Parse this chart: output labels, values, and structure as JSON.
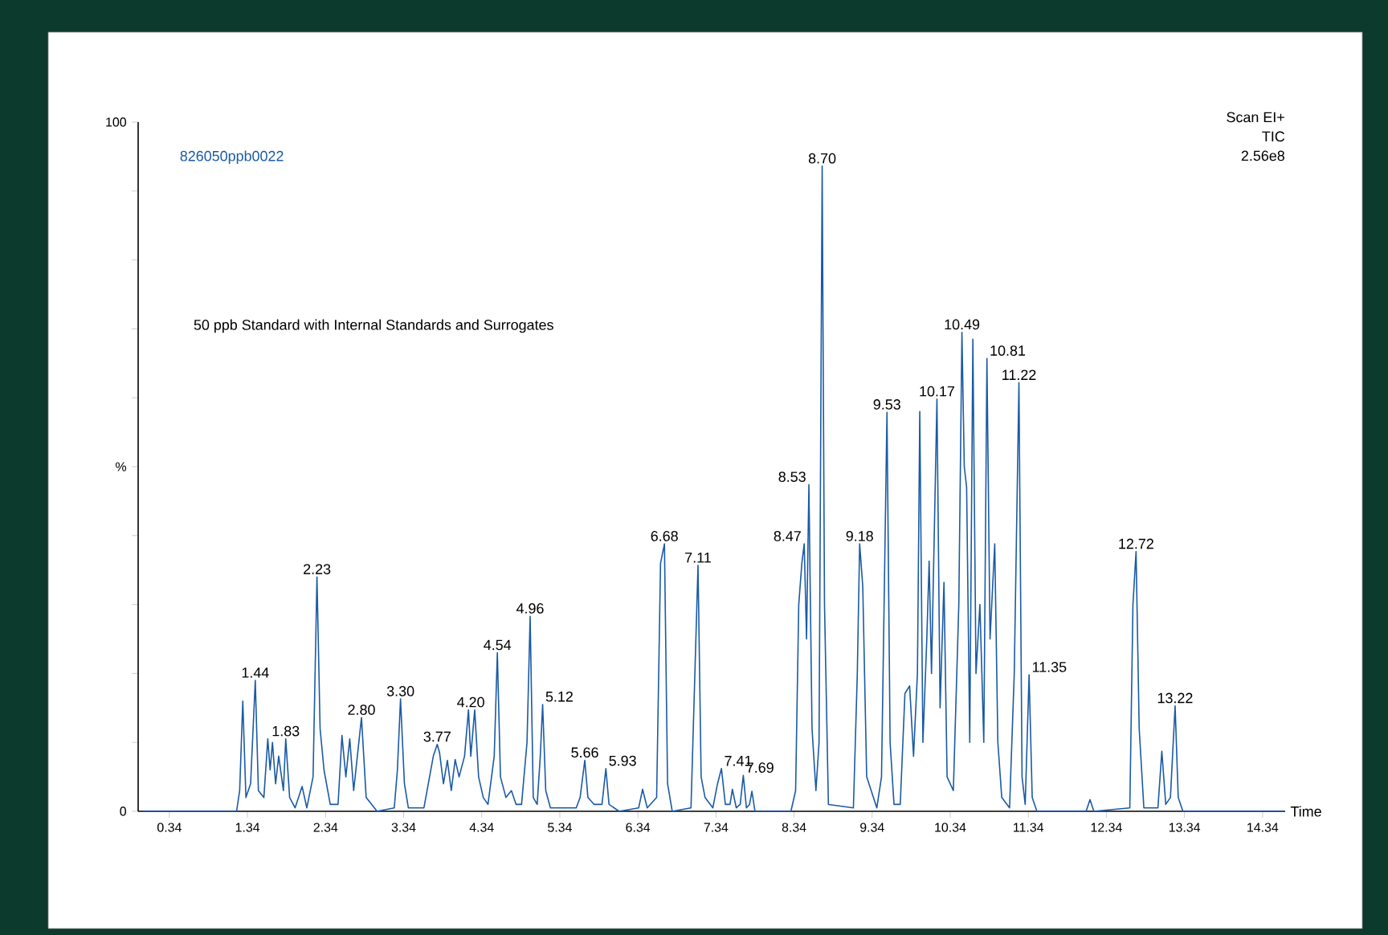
{
  "chart_data": {
    "type": "line",
    "title": "50 ppb Standard with Internal Standards and Surrogates",
    "subtitle": "826050ppb0022",
    "xlabel": "Time",
    "color": "#1a5aa6",
    "xlim": [
      -0.06,
      14.63
    ],
    "ylim": [
      0,
      100
    ],
    "xticks": [
      0.34,
      1.34,
      2.34,
      3.34,
      4.34,
      5.34,
      6.34,
      7.34,
      8.34,
      9.34,
      10.34,
      11.34,
      12.34,
      13.34,
      14.34
    ],
    "yticks": [
      0,
      {
        "value": 10,
        "label": null
      },
      {
        "value": 20,
        "label": null
      },
      {
        "value": 30,
        "label": null
      },
      {
        "value": 40,
        "label": null
      },
      {
        "value": 50,
        "label": "%"
      },
      {
        "value": 60,
        "label": null
      },
      {
        "value": 70,
        "label": null
      },
      {
        "value": 80,
        "label": null
      },
      {
        "value": 90,
        "label": null
      },
      100
    ],
    "x": [
      0,
      1.2,
      1.24,
      1.28,
      1.32,
      1.38,
      1.44,
      1.48,
      1.55,
      1.6,
      1.63,
      1.66,
      1.7,
      1.74,
      1.8,
      1.83,
      1.88,
      1.95,
      2.04,
      2.1,
      2.18,
      2.23,
      2.27,
      2.32,
      2.4,
      2.5,
      2.55,
      2.6,
      2.65,
      2.7,
      2.8,
      2.86,
      3.0,
      3.22,
      3.26,
      3.3,
      3.35,
      3.4,
      3.6,
      3.72,
      3.77,
      3.8,
      3.85,
      3.9,
      3.95,
      4.0,
      4.05,
      4.12,
      4.17,
      4.2,
      4.25,
      4.3,
      4.36,
      4.42,
      4.5,
      4.54,
      4.58,
      4.65,
      4.72,
      4.78,
      4.85,
      4.92,
      4.96,
      5.0,
      5.05,
      5.09,
      5.12,
      5.16,
      5.22,
      5.55,
      5.6,
      5.66,
      5.7,
      5.78,
      5.88,
      5.93,
      5.97,
      6.1,
      6.35,
      6.4,
      6.46,
      6.58,
      6.63,
      6.68,
      6.72,
      6.78,
      7.02,
      7.11,
      7.15,
      7.2,
      7.3,
      7.36,
      7.41,
      7.46,
      7.52,
      7.55,
      7.6,
      7.65,
      7.69,
      7.73,
      7.77,
      7.8,
      7.84,
      8.3,
      8.36,
      8.4,
      8.44,
      8.47,
      8.5,
      8.53,
      8.57,
      8.62,
      8.66,
      8.7,
      8.73,
      8.78,
      9.1,
      9.15,
      9.18,
      9.22,
      9.27,
      9.4,
      9.46,
      9.53,
      9.57,
      9.62,
      9.7,
      9.76,
      9.82,
      9.87,
      9.92,
      9.95,
      9.99,
      10.04,
      10.07,
      10.1,
      10.17,
      10.21,
      10.26,
      10.3,
      10.38,
      10.45,
      10.49,
      10.52,
      10.55,
      10.59,
      10.63,
      10.67,
      10.72,
      10.77,
      10.81,
      10.85,
      10.91,
      10.95,
      11.0,
      11.1,
      11.16,
      11.22,
      11.26,
      11.3,
      11.35,
      11.39,
      11.45,
      12.08,
      12.13,
      12.18,
      12.64,
      12.68,
      12.72,
      12.76,
      12.82,
      13.0,
      13.05,
      13.1,
      13.16,
      13.22,
      13.26,
      13.32,
      14.63
    ],
    "values": [
      0,
      0,
      3,
      16,
      2,
      4,
      19,
      3,
      2,
      10.5,
      6,
      10,
      4,
      8,
      3,
      10.5,
      2,
      0.5,
      3.6,
      0.5,
      5,
      34,
      12,
      6,
      1,
      1,
      11,
      5,
      10.5,
      3,
      13.6,
      2,
      0,
      0.5,
      6,
      16.3,
      4,
      0.5,
      0.5,
      8,
      9.7,
      8.5,
      4,
      7.4,
      3,
      7.5,
      5,
      8,
      14.7,
      8,
      14.7,
      5,
      2,
      1,
      8,
      23,
      5,
      2,
      3,
      1,
      1,
      10,
      28.3,
      2,
      1,
      8,
      15.5,
      3,
      0.5,
      0.5,
      2,
      7.4,
      2,
      1,
      1,
      6.2,
      1,
      0,
      0.5,
      3.2,
      0.5,
      2,
      36,
      38.8,
      4,
      0,
      0.5,
      35.7,
      5,
      2,
      0.5,
      4,
      6.2,
      1,
      1,
      3.2,
      0.5,
      1,
      5.2,
      0.5,
      1,
      2.9,
      0,
      0,
      3,
      30,
      36,
      38.8,
      25,
      47.4,
      12,
      3,
      10,
      93.6,
      30,
      1,
      0.5,
      20,
      38.8,
      32.6,
      5,
      0.5,
      5,
      57.9,
      10,
      1,
      1,
      17.1,
      18.2,
      8,
      20,
      58,
      10,
      25,
      36.3,
      20,
      59.8,
      15,
      33.2,
      5,
      3,
      30,
      69.5,
      50,
      47,
      10,
      68.5,
      20,
      30,
      10,
      65.7,
      25,
      38.8,
      10,
      2,
      0.5,
      20,
      62.2,
      5,
      1,
      19.8,
      2,
      0,
      0,
      1.7,
      0,
      0.5,
      30,
      37.7,
      12,
      0.5,
      0.5,
      8.7,
      1,
      2,
      15.3,
      2,
      0,
      0
    ],
    "annotations": [
      "Scan EI+",
      "TIC",
      "2.56e8",
      {
        "text": "1.44",
        "x": 1.44,
        "y": 19
      },
      {
        "text": "1.83",
        "x": 1.83,
        "y": 10.5
      },
      {
        "text": "2.23",
        "x": 2.23,
        "y": 34
      },
      {
        "text": "2.80",
        "x": 2.8,
        "y": 13.6
      },
      {
        "text": "3.30",
        "x": 3.3,
        "y": 16.3
      },
      {
        "text": "3.77",
        "x": 3.77,
        "y": 9.7
      },
      {
        "text": "4.20",
        "x": 4.2,
        "y": 14.7
      },
      {
        "text": "4.54",
        "x": 4.54,
        "y": 23
      },
      {
        "text": "4.96",
        "x": 4.96,
        "y": 28.3
      },
      {
        "text": "5.12",
        "x": 5.12,
        "y": 15.5
      },
      {
        "text": "5.66",
        "x": 5.66,
        "y": 7.4
      },
      {
        "text": "5.93",
        "x": 5.93,
        "y": 6.2
      },
      {
        "text": "6.68",
        "x": 6.68,
        "y": 38.8
      },
      {
        "text": "7.11",
        "x": 7.11,
        "y": 35.7
      },
      {
        "text": "7.41",
        "x": 7.41,
        "y": 6.2
      },
      {
        "text": "7.69",
        "x": 7.69,
        "y": 5.2
      },
      {
        "text": "8.47",
        "x": 8.47,
        "y": 38.8
      },
      {
        "text": "8.53",
        "x": 8.53,
        "y": 47.4
      },
      {
        "text": "8.70",
        "x": 8.7,
        "y": 93.6
      },
      {
        "text": "9.18",
        "x": 9.18,
        "y": 38.8
      },
      {
        "text": "9.53",
        "x": 9.53,
        "y": 57.9
      },
      {
        "text": "10.17",
        "x": 10.17,
        "y": 59.8
      },
      {
        "text": "10.49",
        "x": 10.49,
        "y": 69.5
      },
      {
        "text": "10.81",
        "x": 10.81,
        "y": 65.7
      },
      {
        "text": "11.22",
        "x": 11.22,
        "y": 62.2
      },
      {
        "text": "11.35",
        "x": 11.35,
        "y": 19.8
      },
      {
        "text": "12.72",
        "x": 12.72,
        "y": 37.7
      },
      {
        "text": "13.22",
        "x": 13.22,
        "y": 15.3
      }
    ]
  }
}
